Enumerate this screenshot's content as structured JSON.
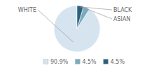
{
  "chart_data": {
    "type": "pie",
    "categories": [
      "WHITE",
      "ASIAN",
      "BLACK"
    ],
    "values": [
      90.9,
      4.5,
      4.5
    ],
    "value_labels": [
      "90.9%",
      "4.5%",
      "4.5%"
    ],
    "colors": [
      "#d6e4f0",
      "#7aaabe",
      "#2e5f7a"
    ],
    "legend": "bottom"
  }
}
